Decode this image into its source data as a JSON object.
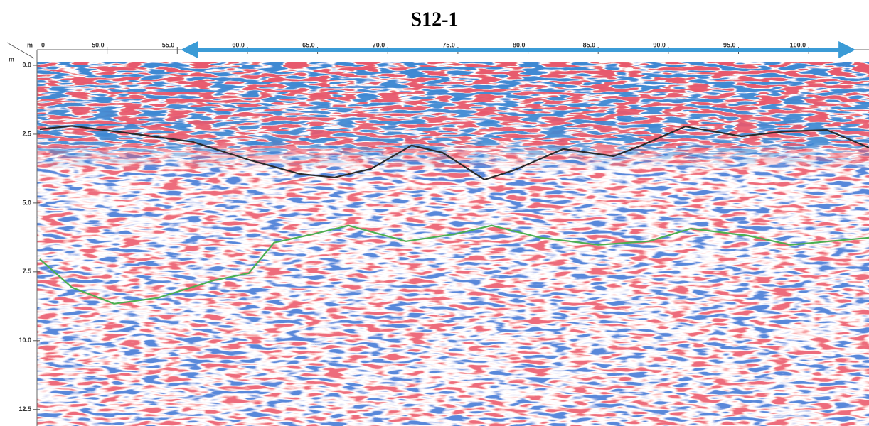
{
  "chart_data": {
    "type": "radargram",
    "title": "S12-1",
    "x_unit": "m",
    "y_unit": "m",
    "x_start_label": "0",
    "xlim": [
      45,
      104.3
    ],
    "ylim": [
      0,
      13.1
    ],
    "y_reversed": true,
    "xticks": [
      {
        "value": 50,
        "label": "50.0"
      },
      {
        "value": 55,
        "label": "55.0"
      },
      {
        "value": 60,
        "label": "60.0"
      },
      {
        "value": 65,
        "label": "65.0"
      },
      {
        "value": 70,
        "label": "70.0"
      },
      {
        "value": 75,
        "label": "75.0"
      },
      {
        "value": 80,
        "label": "80.0"
      },
      {
        "value": 85,
        "label": "85.0"
      },
      {
        "value": 90,
        "label": "90.0"
      },
      {
        "value": 95,
        "label": "95.0"
      },
      {
        "value": 100,
        "label": "100.0"
      }
    ],
    "yticks": [
      {
        "value": 0,
        "label": "0.0"
      },
      2.5,
      {
        "value": 5,
        "label": "5.0"
      },
      7.5,
      {
        "value": 10,
        "label": "10.0"
      },
      12.5
    ],
    "arrow_range": [
      55.5,
      103.1
    ],
    "arrow_color": "#3b9bd6",
    "series": [
      {
        "color": "#2a2a2a",
        "x": [
          45.2,
          47.5,
          52.5,
          56.1,
          60.1,
          63.7,
          66.2,
          68.8,
          71.7,
          73.9,
          76.9,
          79.0,
          82.5,
          86.1,
          88.1,
          91.2,
          95.2,
          98.3,
          101.3,
          104.3
        ],
        "values": [
          2.32,
          2.2,
          2.53,
          2.78,
          3.43,
          3.94,
          4.07,
          3.76,
          2.91,
          3.17,
          4.15,
          3.81,
          3.04,
          3.3,
          2.91,
          2.22,
          2.58,
          2.4,
          2.35,
          2.99
        ]
      },
      {
        "color": "#4caf50",
        "x": [
          45.2,
          47.5,
          50.5,
          53.6,
          57.6,
          60.1,
          61.9,
          64.7,
          67.2,
          71.3,
          74.8,
          77.4,
          80.9,
          85.0,
          88.6,
          91.6,
          95.7,
          98.7,
          104.3
        ],
        "values": [
          7.04,
          8.07,
          8.66,
          8.45,
          7.81,
          7.55,
          6.44,
          6.13,
          5.82,
          6.39,
          6.13,
          5.82,
          6.26,
          6.52,
          6.39,
          5.93,
          6.19,
          6.52,
          6.26
        ]
      }
    ]
  }
}
